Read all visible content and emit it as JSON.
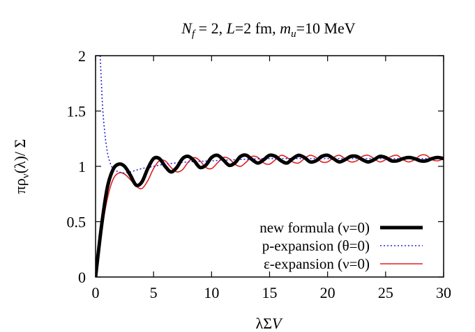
{
  "chart_data": {
    "type": "line",
    "title_parts": [
      {
        "t": "N",
        "i": true
      },
      {
        "t": "f",
        "i": true,
        "sub": true
      },
      {
        "t": " = 2, "
      },
      {
        "t": "L",
        "i": true
      },
      {
        "t": "=2 fm, "
      },
      {
        "t": "m",
        "i": true
      },
      {
        "t": "u",
        "i": true,
        "sub": true
      },
      {
        "t": "=10 MeV"
      }
    ],
    "xlabel": "λΣV",
    "ylabel": "πρ_ν(λ)/ Σ",
    "ylabel_parts": [
      {
        "t": "πρ"
      },
      {
        "t": "ν",
        "sub": true
      },
      {
        "t": "(λ)/ Σ"
      }
    ],
    "xlim": [
      0,
      30
    ],
    "ylim": [
      0,
      2
    ],
    "xticks": [
      "0",
      "5",
      "10",
      "15",
      "20",
      "25",
      "30"
    ],
    "yticks": [
      "0",
      "0.5",
      "1",
      "1.5",
      "2"
    ],
    "grid": false,
    "legend_position": "bottom-right",
    "series": [
      {
        "name": "new formula (ν=0)",
        "color": "#000000",
        "style": "solid-thick",
        "x": [
          0,
          0.5,
          1,
          1.5,
          2,
          2.5,
          3,
          3.5,
          4,
          4.5,
          5,
          5.5,
          6,
          6.5,
          7,
          7.5,
          8,
          8.5,
          9,
          9.5,
          10,
          10.5,
          11,
          11.5,
          12,
          12.5,
          13,
          13.5,
          14,
          14.5,
          15,
          15.5,
          16,
          16.5,
          17,
          17.5,
          18,
          18.5,
          19,
          19.5,
          20,
          20.5,
          21,
          21.5,
          22,
          22.5,
          23,
          23.5,
          24,
          24.5,
          25,
          25.5,
          26,
          26.5,
          27,
          27.5,
          28,
          28.5,
          29,
          29.5,
          30
        ],
        "y": [
          0,
          0.45,
          0.8,
          0.97,
          1.02,
          1.0,
          0.92,
          0.83,
          0.86,
          0.98,
          1.07,
          1.07,
          1.0,
          0.95,
          0.99,
          1.07,
          1.09,
          1.05,
          0.99,
          1.01,
          1.08,
          1.1,
          1.06,
          1.01,
          1.03,
          1.09,
          1.1,
          1.06,
          1.03,
          1.06,
          1.1,
          1.09,
          1.05,
          1.03,
          1.07,
          1.1,
          1.08,
          1.04,
          1.05,
          1.09,
          1.1,
          1.07,
          1.04,
          1.06,
          1.09,
          1.09,
          1.06,
          1.04,
          1.06,
          1.09,
          1.08,
          1.05,
          1.05,
          1.07,
          1.08,
          1.07,
          1.05,
          1.05,
          1.07,
          1.08,
          1.07
        ]
      },
      {
        "name": "p-expansion (θ=0)",
        "color": "#2222dd",
        "style": "dotted",
        "x": [
          0.4,
          0.6,
          0.8,
          1.0,
          1.2,
          1.5,
          2,
          2.5,
          3,
          4,
          5,
          6,
          8,
          10,
          12,
          15,
          18,
          20,
          22,
          25,
          28,
          30
        ],
        "y": [
          2.0,
          1.55,
          1.3,
          1.14,
          1.05,
          0.98,
          0.95,
          0.94,
          0.95,
          0.98,
          1.0,
          1.02,
          1.04,
          1.05,
          1.06,
          1.07,
          1.07,
          1.07,
          1.07,
          1.07,
          1.07,
          1.07
        ]
      },
      {
        "name": "ε-expansion (ν=0)",
        "color": "#e02020",
        "style": "solid-thin",
        "x": [
          0,
          0.5,
          1,
          1.5,
          2,
          2.5,
          3,
          3.5,
          4,
          4.5,
          5,
          5.5,
          6,
          6.5,
          7,
          7.5,
          8,
          8.5,
          9,
          9.5,
          10,
          10.5,
          11,
          11.5,
          12,
          12.5,
          13,
          13.5,
          14,
          14.5,
          15,
          15.5,
          16,
          16.5,
          17,
          17.5,
          18,
          18.5,
          19,
          19.5,
          20,
          20.5,
          21,
          21.5,
          22,
          22.5,
          23,
          23.5,
          24,
          24.5,
          25,
          25.5,
          26,
          26.5,
          27,
          27.5,
          28,
          28.5,
          29,
          29.5,
          30
        ],
        "y": [
          0,
          0.4,
          0.7,
          0.88,
          0.94,
          0.93,
          0.88,
          0.82,
          0.8,
          0.87,
          0.98,
          1.05,
          1.05,
          0.99,
          0.95,
          0.97,
          1.04,
          1.08,
          1.05,
          0.99,
          0.98,
          1.03,
          1.08,
          1.07,
          1.02,
          1.0,
          1.04,
          1.09,
          1.08,
          1.03,
          1.02,
          1.06,
          1.1,
          1.08,
          1.04,
          1.03,
          1.07,
          1.1,
          1.08,
          1.04,
          1.04,
          1.08,
          1.1,
          1.07,
          1.04,
          1.05,
          1.09,
          1.1,
          1.07,
          1.04,
          1.06,
          1.09,
          1.1,
          1.06,
          1.04,
          1.06,
          1.1,
          1.1,
          1.06,
          1.05,
          1.07
        ]
      }
    ]
  }
}
